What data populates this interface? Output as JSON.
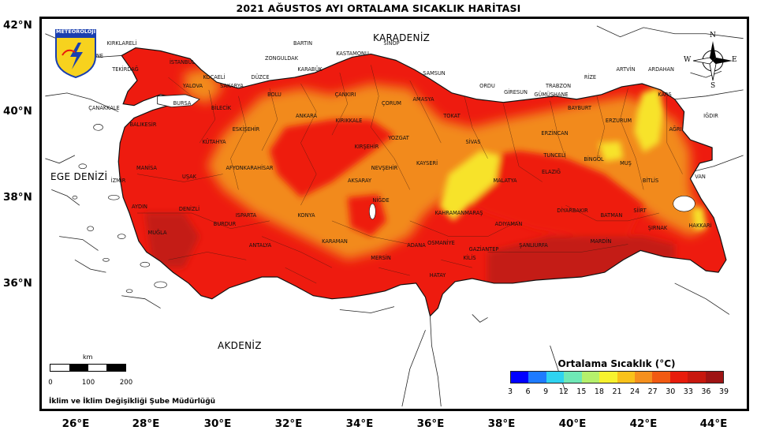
{
  "title": "2021 AĞUSTOS AYI ORTALAMA SICAKLIK HARİTASI",
  "lat_ticks": [
    "42°N",
    "40°N",
    "38°N",
    "36°N"
  ],
  "lon_ticks": [
    "26°E",
    "28°E",
    "30°E",
    "32°E",
    "34°E",
    "36°E",
    "38°E",
    "40°E",
    "42°E",
    "44°E"
  ],
  "seas": {
    "black_sea": "KARADENİZ",
    "aegean": "EGE DENİZİ",
    "mediterranean": "AKDENİZ"
  },
  "logo_text": "METEOROLOJİ",
  "compass": {
    "n": "N",
    "s": "S",
    "e": "E",
    "w": "W"
  },
  "legend": {
    "title": "Ortalama Sıcaklık (°C)",
    "ticks": [
      "3",
      "6",
      "9",
      "12",
      "15",
      "18",
      "21",
      "24",
      "27",
      "30",
      "33",
      "36",
      "39"
    ],
    "colors": [
      "#0000ff",
      "#1e7bff",
      "#2fd3f0",
      "#6fe8b6",
      "#b5f06c",
      "#f7f22e",
      "#f9c21a",
      "#f5901e",
      "#f15a12",
      "#e81c0c",
      "#c8180e",
      "#9e1414"
    ]
  },
  "scale": {
    "unit": "km",
    "labels": [
      "0",
      "100",
      "200"
    ]
  },
  "footer": "İklim ve İklim Değişikliği Şube Müdürlüğü",
  "zone_colors": {
    "yellow": "#f7e32c",
    "orange": "#f28a1a",
    "red": "#ee1b0f",
    "darkred": "#c41d18"
  },
  "provinces": [
    {
      "name": "KIRKLARELİ",
      "lon": 27.3,
      "lat": 41.6
    },
    {
      "name": "EDİRNE",
      "lon": 26.5,
      "lat": 41.3
    },
    {
      "name": "TEKİRDAĞ",
      "lon": 27.4,
      "lat": 41.0
    },
    {
      "name": "İSTANBUL",
      "lon": 29.0,
      "lat": 41.15
    },
    {
      "name": "KOCAELİ",
      "lon": 29.9,
      "lat": 40.8
    },
    {
      "name": "SAKARYA",
      "lon": 30.4,
      "lat": 40.6
    },
    {
      "name": "DÜZCE",
      "lon": 31.2,
      "lat": 40.8
    },
    {
      "name": "ZONGULDAK",
      "lon": 31.8,
      "lat": 41.25
    },
    {
      "name": "BARTIN",
      "lon": 32.4,
      "lat": 41.6
    },
    {
      "name": "KARABÜK",
      "lon": 32.6,
      "lat": 41.0
    },
    {
      "name": "KASTAMONU",
      "lon": 33.8,
      "lat": 41.35
    },
    {
      "name": "SİNOP",
      "lon": 34.9,
      "lat": 41.6
    },
    {
      "name": "BOLU",
      "lon": 31.6,
      "lat": 40.4
    },
    {
      "name": "ÇANKIRI",
      "lon": 33.6,
      "lat": 40.4
    },
    {
      "name": "ÇORUM",
      "lon": 34.9,
      "lat": 40.2
    },
    {
      "name": "SAMSUN",
      "lon": 36.1,
      "lat": 40.9
    },
    {
      "name": "AMASYA",
      "lon": 35.8,
      "lat": 40.3
    },
    {
      "name": "TOKAT",
      "lon": 36.6,
      "lat": 39.9
    },
    {
      "name": "ORDU",
      "lon": 37.6,
      "lat": 40.6
    },
    {
      "name": "GİRESUN",
      "lon": 38.4,
      "lat": 40.45
    },
    {
      "name": "TRABZON",
      "lon": 39.6,
      "lat": 40.6
    },
    {
      "name": "RİZE",
      "lon": 40.5,
      "lat": 40.8
    },
    {
      "name": "ARTVİN",
      "lon": 41.5,
      "lat": 41.0
    },
    {
      "name": "ARDAHAN",
      "lon": 42.5,
      "lat": 41.0
    },
    {
      "name": "KARS",
      "lon": 42.6,
      "lat": 40.4
    },
    {
      "name": "IĞDIR",
      "lon": 43.9,
      "lat": 39.9
    },
    {
      "name": "AĞRI",
      "lon": 42.9,
      "lat": 39.6
    },
    {
      "name": "ERZURUM",
      "lon": 41.3,
      "lat": 39.8
    },
    {
      "name": "BAYBURT",
      "lon": 40.2,
      "lat": 40.1
    },
    {
      "name": "GÜMÜŞHANE",
      "lon": 39.4,
      "lat": 40.4
    },
    {
      "name": "ERZİNCAN",
      "lon": 39.5,
      "lat": 39.5
    },
    {
      "name": "SİVAS",
      "lon": 37.2,
      "lat": 39.3
    },
    {
      "name": "YOZGAT",
      "lon": 35.1,
      "lat": 39.4
    },
    {
      "name": "KIRIKKALE",
      "lon": 33.7,
      "lat": 39.8
    },
    {
      "name": "ANKARA",
      "lon": 32.5,
      "lat": 39.9
    },
    {
      "name": "ESKİŞEHİR",
      "lon": 30.8,
      "lat": 39.6
    },
    {
      "name": "BİLECİK",
      "lon": 30.1,
      "lat": 40.1
    },
    {
      "name": "BURSA",
      "lon": 29.0,
      "lat": 40.2
    },
    {
      "name": "YALOVA",
      "lon": 29.3,
      "lat": 40.6
    },
    {
      "name": "ÇANAKKALE",
      "lon": 26.8,
      "lat": 40.1
    },
    {
      "name": "BALIKESİR",
      "lon": 27.9,
      "lat": 39.7
    },
    {
      "name": "KÜTAHYA",
      "lon": 29.9,
      "lat": 39.3
    },
    {
      "name": "KIRŞEHİR",
      "lon": 34.2,
      "lat": 39.2
    },
    {
      "name": "NEVŞEHİR",
      "lon": 34.7,
      "lat": 38.7
    },
    {
      "name": "AKSARAY",
      "lon": 34.0,
      "lat": 38.4
    },
    {
      "name": "KAYSERİ",
      "lon": 35.9,
      "lat": 38.8
    },
    {
      "name": "TUNCELİ",
      "lon": 39.5,
      "lat": 39.0
    },
    {
      "name": "BİNGÖL",
      "lon": 40.6,
      "lat": 38.9
    },
    {
      "name": "MUŞ",
      "lon": 41.5,
      "lat": 38.8
    },
    {
      "name": "VAN",
      "lon": 43.6,
      "lat": 38.5
    },
    {
      "name": "BİTLİS",
      "lon": 42.2,
      "lat": 38.4
    },
    {
      "name": "ELAZIĞ",
      "lon": 39.4,
      "lat": 38.6
    },
    {
      "name": "MALATYA",
      "lon": 38.1,
      "lat": 38.4
    },
    {
      "name": "MANİSA",
      "lon": 28.0,
      "lat": 38.7
    },
    {
      "name": "UŞAK",
      "lon": 29.2,
      "lat": 38.5
    },
    {
      "name": "AFYONKARAHİSAR",
      "lon": 30.9,
      "lat": 38.7
    },
    {
      "name": "İZMİR",
      "lon": 27.2,
      "lat": 38.4
    },
    {
      "name": "AYDIN",
      "lon": 27.8,
      "lat": 37.8
    },
    {
      "name": "DENİZLİ",
      "lon": 29.2,
      "lat": 37.75
    },
    {
      "name": "ISPARTA",
      "lon": 30.8,
      "lat": 37.6
    },
    {
      "name": "KONYA",
      "lon": 32.5,
      "lat": 37.6
    },
    {
      "name": "NİĞDE",
      "lon": 34.6,
      "lat": 37.95
    },
    {
      "name": "KAHRAMANMARAŞ",
      "lon": 36.8,
      "lat": 37.65
    },
    {
      "name": "ADIYAMAN",
      "lon": 38.2,
      "lat": 37.4
    },
    {
      "name": "DİYARBAKIR",
      "lon": 40.0,
      "lat": 37.7
    },
    {
      "name": "BATMAN",
      "lon": 41.1,
      "lat": 37.6
    },
    {
      "name": "SİİRT",
      "lon": 41.9,
      "lat": 37.7
    },
    {
      "name": "ŞIRNAK",
      "lon": 42.4,
      "lat": 37.3
    },
    {
      "name": "HAKKARİ",
      "lon": 43.6,
      "lat": 37.35
    },
    {
      "name": "MUĞLA",
      "lon": 28.3,
      "lat": 37.2
    },
    {
      "name": "BURDUR",
      "lon": 30.2,
      "lat": 37.4
    },
    {
      "name": "ANTALYA",
      "lon": 31.2,
      "lat": 36.9
    },
    {
      "name": "KARAMAN",
      "lon": 33.3,
      "lat": 37.0
    },
    {
      "name": "MERSİN",
      "lon": 34.6,
      "lat": 36.6
    },
    {
      "name": "ADANA",
      "lon": 35.6,
      "lat": 36.9
    },
    {
      "name": "OSMANİYE",
      "lon": 36.3,
      "lat": 36.95
    },
    {
      "name": "GAZİANTEP",
      "lon": 37.5,
      "lat": 36.8
    },
    {
      "name": "ŞANLIURFA",
      "lon": 38.9,
      "lat": 36.9
    },
    {
      "name": "MARDİN",
      "lon": 40.8,
      "lat": 37.0
    },
    {
      "name": "KİLİS",
      "lon": 37.1,
      "lat": 36.6
    },
    {
      "name": "HATAY",
      "lon": 36.2,
      "lat": 36.2
    }
  ]
}
